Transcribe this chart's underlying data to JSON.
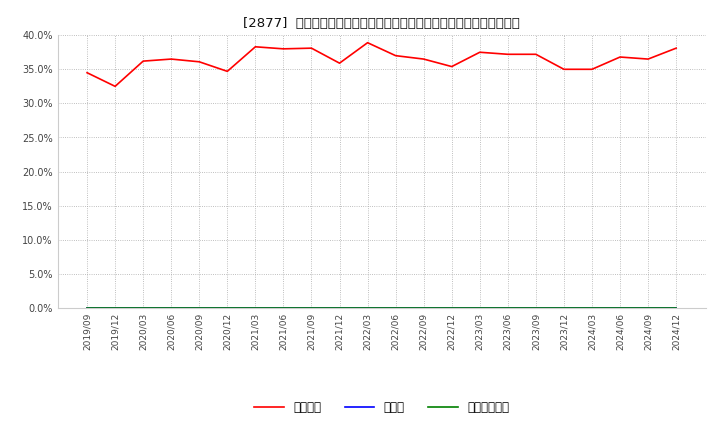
{
  "title": "[2877]  自己資本、のれん、繰延税金資産の総資産に対する比率の推移",
  "x_labels": [
    "2019/09",
    "2019/12",
    "2020/03",
    "2020/06",
    "2020/09",
    "2020/12",
    "2021/03",
    "2021/06",
    "2021/09",
    "2021/12",
    "2022/03",
    "2022/06",
    "2022/09",
    "2022/12",
    "2023/03",
    "2023/06",
    "2023/09",
    "2023/12",
    "2024/03",
    "2024/06",
    "2024/09",
    "2024/12"
  ],
  "equity_ratio": [
    34.5,
    32.5,
    36.2,
    36.5,
    36.1,
    34.7,
    38.3,
    38.0,
    38.1,
    35.9,
    38.9,
    37.0,
    36.5,
    35.4,
    37.5,
    37.2,
    37.2,
    35.0,
    35.0,
    36.8,
    36.5,
    38.1
  ],
  "noren_ratio": [
    0,
    0,
    0,
    0,
    0,
    0,
    0,
    0,
    0,
    0,
    0,
    0,
    0,
    0,
    0,
    0,
    0,
    0,
    0,
    0,
    0,
    0
  ],
  "deferred_tax_ratio": [
    0,
    0,
    0,
    0,
    0,
    0,
    0,
    0,
    0,
    0,
    0,
    0,
    0,
    0,
    0,
    0,
    0,
    0,
    0,
    0,
    0,
    0
  ],
  "equity_color": "#ff0000",
  "noren_color": "#0000ff",
  "deferred_tax_color": "#008000",
  "background_color": "#ffffff",
  "grid_color": "#aaaaaa",
  "ylim": [
    0.0,
    40.0
  ],
  "yticks": [
    0.0,
    5.0,
    10.0,
    15.0,
    20.0,
    25.0,
    30.0,
    35.0,
    40.0
  ],
  "legend_labels": [
    "自己資本",
    "のれん",
    "繰延税金資産"
  ],
  "fig_width": 7.2,
  "fig_height": 4.4,
  "dpi": 100,
  "title_prefix": "[2877]  ",
  "title_main": "自己資本、のれん、繰延税金資産の総資産に対する比率の推移"
}
